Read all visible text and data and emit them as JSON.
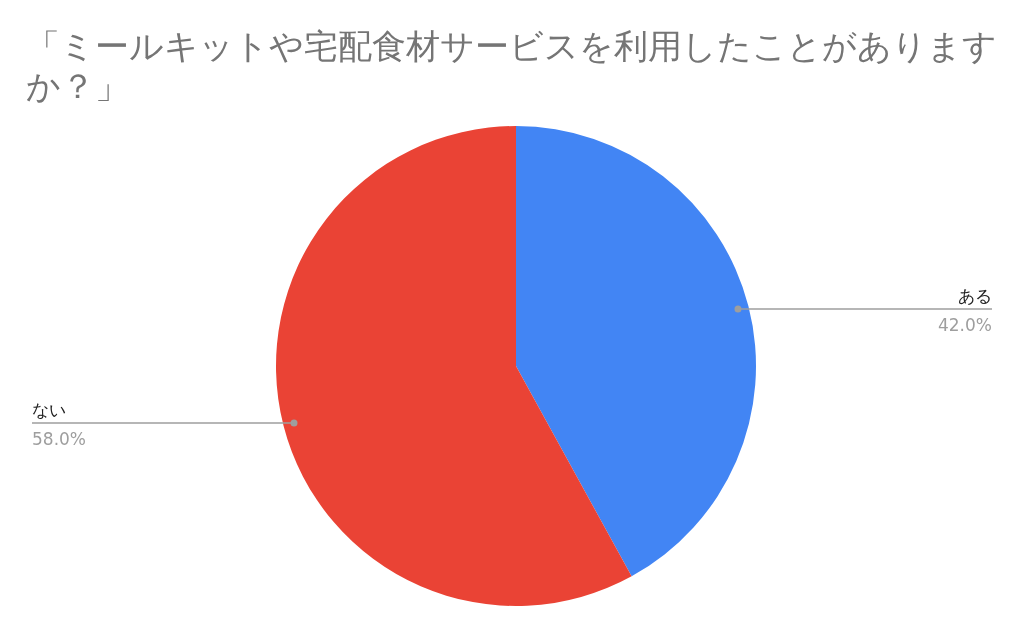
{
  "chart_data": {
    "type": "pie",
    "title": "「ミールキットや宅配食材サービスを利用したことがありますか？」",
    "categories": [
      "ある",
      "ない"
    ],
    "values": [
      42.0,
      58.0
    ],
    "colors": [
      "#4285f4",
      "#ea4335"
    ],
    "value_labels": [
      "42.0%",
      "58.0%"
    ]
  }
}
